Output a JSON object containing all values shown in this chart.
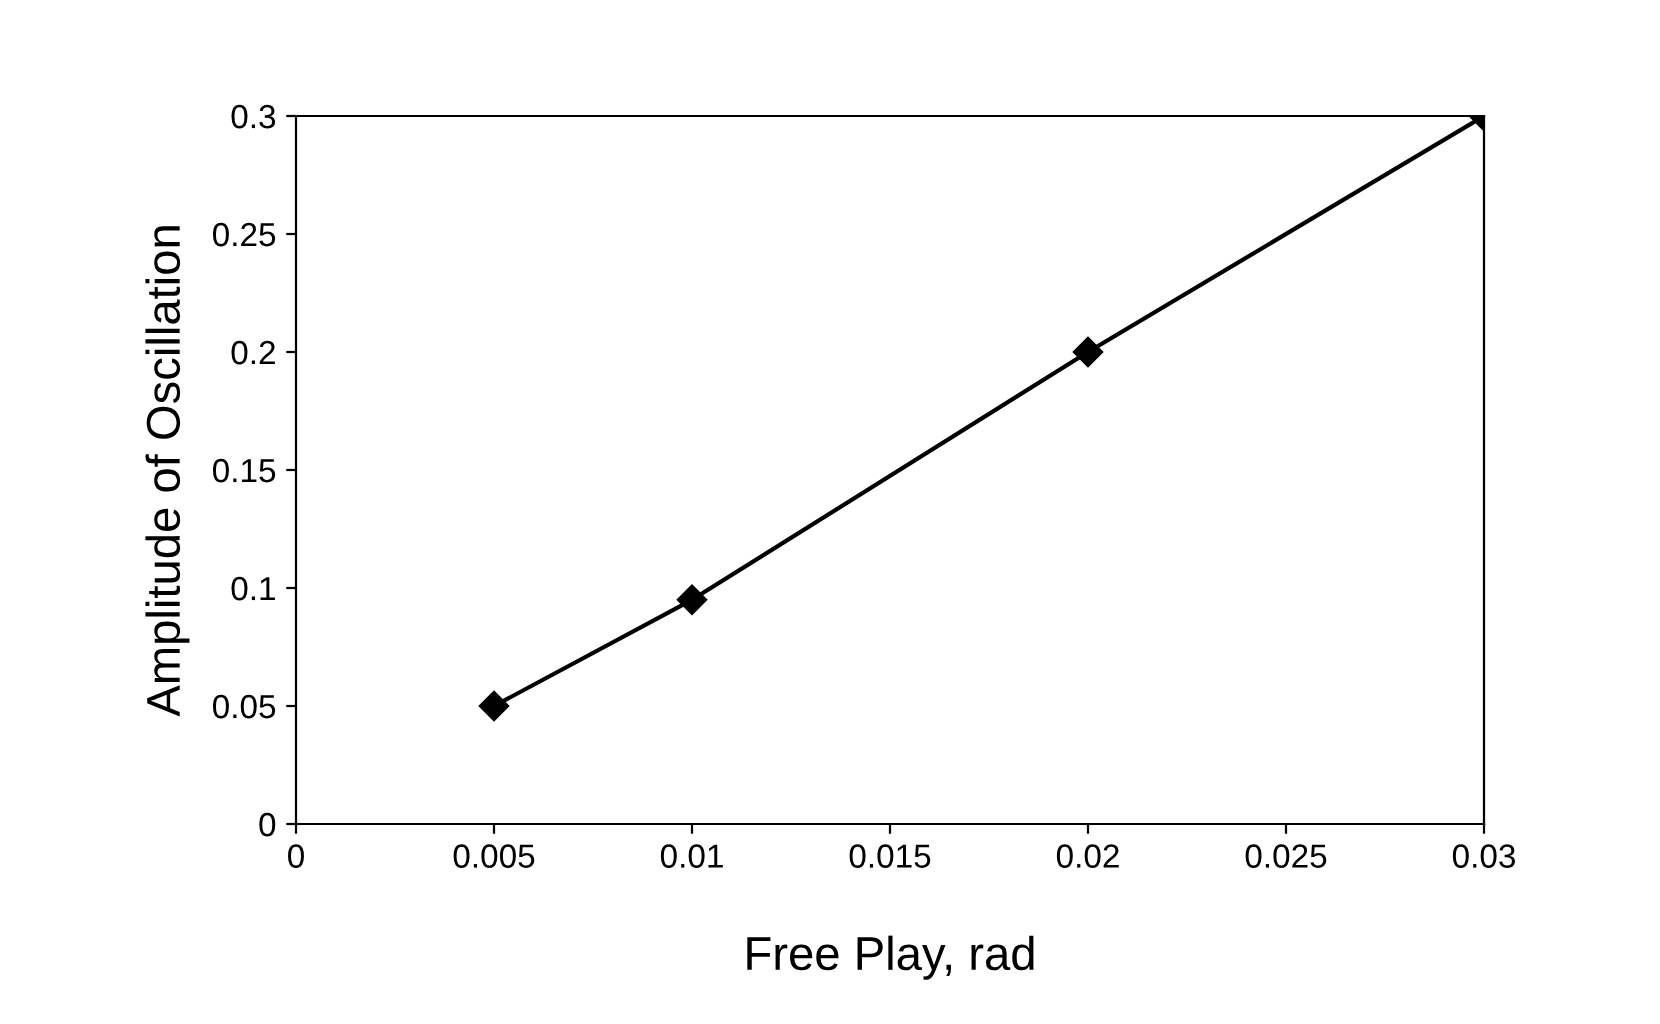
{
  "chart_data": {
    "type": "line",
    "xlabel": "Free Play, rad",
    "ylabel": "Amplitude of Oscillation",
    "x": [
      0.005,
      0.01,
      0.02,
      0.03
    ],
    "series": [
      {
        "color": "#000000",
        "values": [
          0.05,
          0.095,
          0.2,
          0.3
        ]
      }
    ],
    "xlim": [
      0,
      0.03
    ],
    "ylim": [
      0,
      0.3
    ],
    "xticks": [
      0,
      0.005,
      0.01,
      0.015,
      0.02,
      0.025,
      0.03
    ],
    "yticks": [
      0,
      0.05,
      0.1,
      0.15,
      0.2,
      0.25,
      0.3
    ],
    "marker": "diamond",
    "line_style": "solid",
    "grid": false,
    "legend": false
  }
}
